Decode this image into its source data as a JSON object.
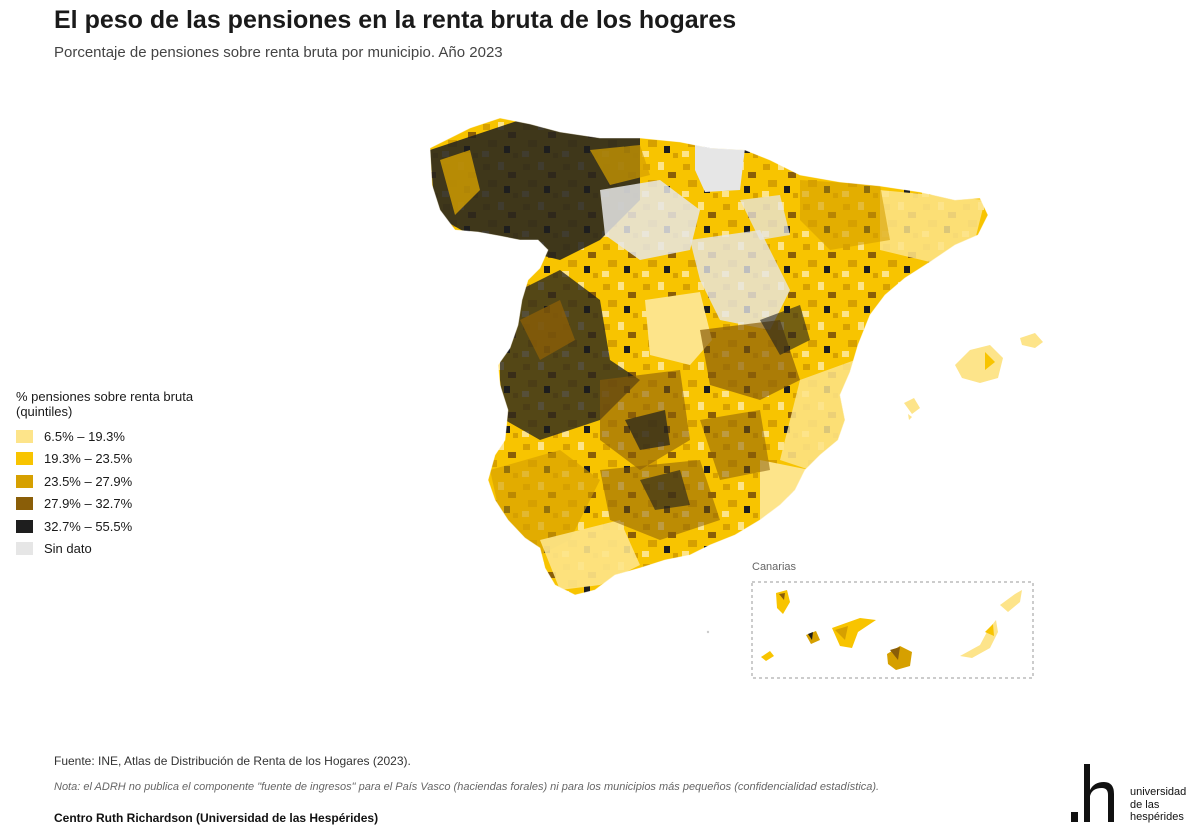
{
  "header": {
    "title": "El peso de las pensiones en la renta bruta de los hogares",
    "subtitle": "Porcentaje de pensiones sobre renta bruta por municipio. Año 2023"
  },
  "legend": {
    "title": "% pensiones sobre renta bruta (quintiles)",
    "items": [
      {
        "label": "6.5% – 19.3%",
        "color": "#fde48a"
      },
      {
        "label": "19.3% – 23.5%",
        "color": "#f8c400"
      },
      {
        "label": "23.5% – 27.9%",
        "color": "#d6a000"
      },
      {
        "label": "27.9% – 32.7%",
        "color": "#8a5e08"
      },
      {
        "label": "32.7% – 55.5%",
        "color": "#1e1e1e"
      },
      {
        "label": "Sin dato",
        "color": "#e6e6e6"
      }
    ]
  },
  "map": {
    "inset_label": "Canarias"
  },
  "footer": {
    "source": "Fuente: INE, Atlas de Distribución de Renta de los Hogares (2023).",
    "note": "Nota: el ADRH no publica el componente \"fuente de ingresos\" para el País Vasco (haciendas forales) ni para los municipios más pequeños (confidencialidad estadística).",
    "credit": "Centro Ruth Richardson (Universidad de las Hespérides)"
  },
  "logo": {
    "line1": "universidad",
    "line2": "de las",
    "line3": "hespérides"
  }
}
